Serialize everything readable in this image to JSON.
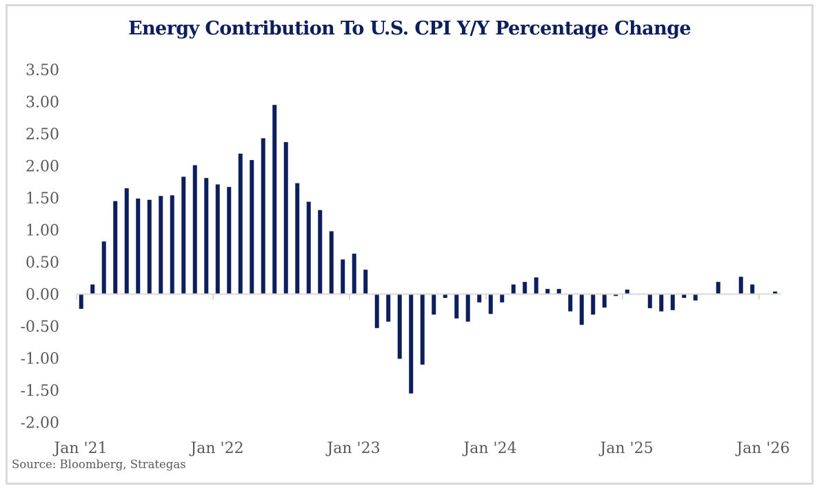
{
  "chart_data": {
    "type": "bar",
    "title": "Energy Contribution To U.S. CPI Y/Y Percentage Change",
    "xlabel": "",
    "ylabel": "",
    "ylim": [
      -2.0,
      3.5
    ],
    "yticks": [
      "3.50",
      "3.00",
      "2.50",
      "2.00",
      "1.50",
      "1.00",
      "0.50",
      "0.00",
      "-0.50",
      "-1.00",
      "-1.50",
      "-2.00"
    ],
    "ytick_values": [
      3.5,
      3.0,
      2.5,
      2.0,
      1.5,
      1.0,
      0.5,
      0.0,
      -0.5,
      -1.0,
      -1.5,
      -2.0
    ],
    "xticks": [
      "Jan '21",
      "Jan '22",
      "Jan '23",
      "Jan '24",
      "Jan '25",
      "Jan '26"
    ],
    "xtick_category_index": [
      0,
      12,
      24,
      36,
      48,
      60
    ],
    "grid": false,
    "legend": "none",
    "bar_color": "#0c1f5c",
    "categories": [
      "Jan 2021",
      "Feb 2021",
      "Mar 2021",
      "Apr 2021",
      "May 2021",
      "Jun 2021",
      "Jul 2021",
      "Aug 2021",
      "Sep 2021",
      "Oct 2021",
      "Nov 2021",
      "Dec 2021",
      "Jan 2022",
      "Feb 2022",
      "Mar 2022",
      "Apr 2022",
      "May 2022",
      "Jun 2022",
      "Jul 2022",
      "Aug 2022",
      "Sep 2022",
      "Oct 2022",
      "Nov 2022",
      "Dec 2022",
      "Jan 2023",
      "Feb 2023",
      "Mar 2023",
      "Apr 2023",
      "May 2023",
      "Jun 2023",
      "Jul 2023",
      "Aug 2023",
      "Sep 2023",
      "Oct 2023",
      "Nov 2023",
      "Dec 2023",
      "Jan 2024",
      "Feb 2024",
      "Mar 2024",
      "Apr 2024",
      "May 2024",
      "Jun 2024",
      "Jul 2024",
      "Aug 2024",
      "Sep 2024",
      "Oct 2024",
      "Nov 2024",
      "Dec 2024",
      "Jan 2025",
      "Feb 2025",
      "Mar 2025",
      "Apr 2025",
      "May 2025",
      "Jun 2025",
      "Jul 2025",
      "Aug 2025",
      "Sep 2025",
      "Oct 2025",
      "Nov 2025",
      "Dec 2025",
      "Jan 2026",
      "Feb 2026"
    ],
    "values": [
      -0.23,
      0.15,
      0.82,
      1.45,
      1.65,
      1.49,
      1.47,
      1.53,
      1.54,
      1.83,
      2.01,
      1.81,
      1.71,
      1.67,
      2.19,
      2.09,
      2.43,
      2.95,
      2.37,
      1.73,
      1.44,
      1.31,
      0.98,
      0.54,
      0.63,
      0.38,
      -0.53,
      -0.43,
      -1.01,
      -1.55,
      -1.1,
      -0.32,
      -0.06,
      -0.38,
      -0.43,
      -0.13,
      -0.31,
      -0.13,
      0.15,
      0.19,
      0.26,
      0.08,
      0.08,
      -0.27,
      -0.48,
      -0.32,
      -0.21,
      -0.03,
      0.07,
      0.0,
      -0.22,
      -0.27,
      -0.25,
      -0.06,
      -0.1,
      0.0,
      0.19,
      0.0,
      0.27,
      0.15,
      0.0,
      0.04
    ],
    "source": "Source: Bloomberg, Strategas"
  }
}
